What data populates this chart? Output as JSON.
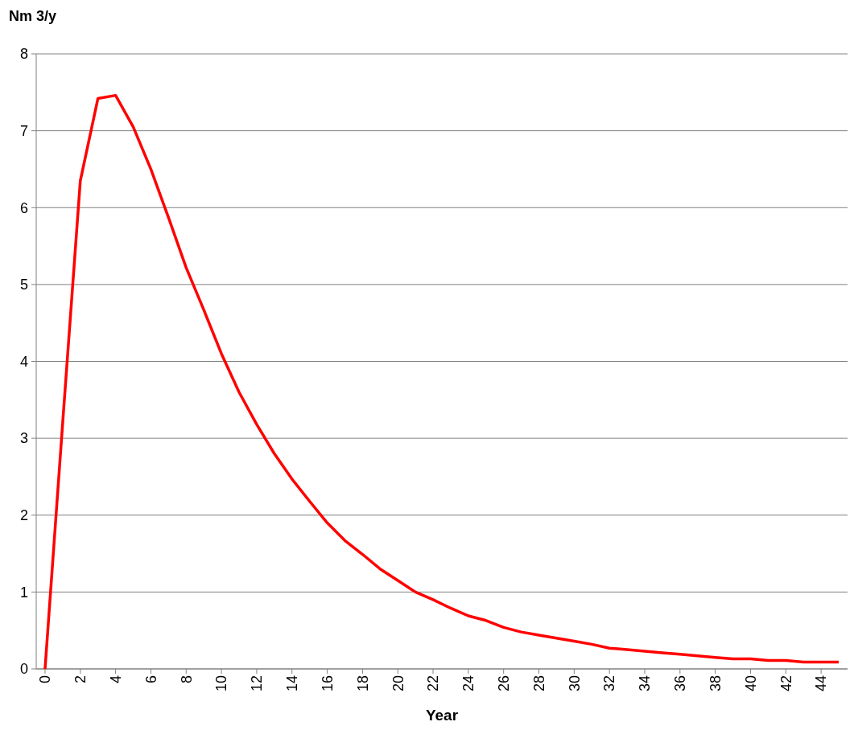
{
  "chart_data": {
    "type": "line",
    "ylabel": "Nm 3/y",
    "xlabel": "Year",
    "grid": "y",
    "marker": "none",
    "line_style": "solid",
    "x": [
      0,
      1,
      2,
      3,
      4,
      5,
      6,
      7,
      8,
      9,
      10,
      11,
      12,
      13,
      14,
      15,
      16,
      17,
      18,
      19,
      20,
      21,
      22,
      23,
      24,
      25,
      26,
      27,
      28,
      29,
      30,
      31,
      32,
      33,
      34,
      35,
      36,
      37,
      38,
      39,
      40,
      41,
      42,
      43,
      44,
      45
    ],
    "series": [
      {
        "color": "#ff0000",
        "values": [
          0,
          3.2,
          6.35,
          7.42,
          7.46,
          7.05,
          6.5,
          5.87,
          5.22,
          4.67,
          4.1,
          3.6,
          3.18,
          2.8,
          2.47,
          2.18,
          1.9,
          1.67,
          1.49,
          1.3,
          1.15,
          1.0,
          0.9,
          0.79,
          0.69,
          0.63,
          0.54,
          0.48,
          0.44,
          0.4,
          0.36,
          0.32,
          0.27,
          0.25,
          0.23,
          0.21,
          0.19,
          0.17,
          0.15,
          0.13,
          0.13,
          0.11,
          0.11,
          0.09,
          0.09,
          0.09
        ]
      }
    ],
    "xlim": [
      -0.5,
      45.5
    ],
    "xticks": [
      0,
      2,
      4,
      6,
      8,
      10,
      12,
      14,
      16,
      18,
      20,
      22,
      24,
      26,
      28,
      30,
      32,
      34,
      36,
      38,
      40,
      42,
      44
    ],
    "ylim": [
      0,
      8
    ],
    "yticks": [
      0,
      1,
      2,
      3,
      4,
      5,
      6,
      7,
      8
    ]
  }
}
